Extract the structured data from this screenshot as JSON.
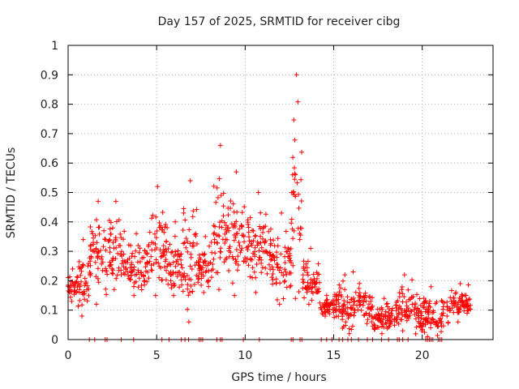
{
  "chart_data": {
    "type": "scatter",
    "title": "Day 157 of 2025, SRMTID for receiver cibg",
    "xlabel": "GPS time / hours",
    "ylabel": "SRMTID / TECUs",
    "xlim": [
      0,
      24
    ],
    "ylim": [
      0,
      1
    ],
    "x_ticks": [
      0,
      5,
      10,
      15,
      20
    ],
    "y_ticks": [
      0,
      0.1,
      0.2,
      0.3,
      0.4,
      0.5,
      0.6,
      0.7,
      0.8,
      0.9,
      1
    ],
    "x_tick_labels": [
      "0",
      "5",
      "10",
      "15",
      "20"
    ],
    "y_tick_labels": [
      "0",
      "0.1",
      "0.2",
      "0.3",
      "0.4",
      "0.5",
      "0.6",
      "0.7",
      "0.8",
      "0.9",
      "1"
    ],
    "grid": true,
    "marker": "+",
    "color": "#ff0000",
    "series": [
      {
        "name": "SRMTID",
        "segments": [
          {
            "x_start": 0.0,
            "x_end": 0.5,
            "y_min": 0.13,
            "y_max": 0.24
          },
          {
            "x_start": 0.5,
            "x_end": 1.2,
            "y_min": 0.08,
            "y_max": 0.34
          },
          {
            "x_start": 1.2,
            "x_end": 2.2,
            "y_min": 0.12,
            "y_max": 0.47
          },
          {
            "x_start": 2.2,
            "x_end": 3.2,
            "y_min": 0.17,
            "y_max": 0.47
          },
          {
            "x_start": 3.2,
            "x_end": 4.5,
            "y_min": 0.15,
            "y_max": 0.36
          },
          {
            "x_start": 4.5,
            "x_end": 5.6,
            "y_min": 0.15,
            "y_max": 0.52
          },
          {
            "x_start": 5.6,
            "x_end": 6.5,
            "y_min": 0.15,
            "y_max": 0.4
          },
          {
            "x_start": 6.5,
            "x_end": 7.3,
            "y_min": 0.06,
            "y_max": 0.54
          },
          {
            "x_start": 7.3,
            "x_end": 8.2,
            "y_min": 0.16,
            "y_max": 0.35
          },
          {
            "x_start": 8.2,
            "x_end": 9.0,
            "y_min": 0.17,
            "y_max": 0.66
          },
          {
            "x_start": 9.0,
            "x_end": 10.0,
            "y_min": 0.15,
            "y_max": 0.57
          },
          {
            "x_start": 10.0,
            "x_end": 11.5,
            "y_min": 0.16,
            "y_max": 0.5
          },
          {
            "x_start": 11.5,
            "x_end": 12.6,
            "y_min": 0.12,
            "y_max": 0.43
          },
          {
            "x_start": 12.6,
            "x_end": 13.2,
            "y_min": 0.14,
            "y_max": 0.9
          },
          {
            "x_start": 13.2,
            "x_end": 14.2,
            "y_min": 0.12,
            "y_max": 0.31
          },
          {
            "x_start": 14.2,
            "x_end": 15.0,
            "y_min": 0.08,
            "y_max": 0.15
          },
          {
            "x_start": 15.0,
            "x_end": 17.2,
            "y_min": 0.02,
            "y_max": 0.23
          },
          {
            "x_start": 17.2,
            "x_end": 18.5,
            "y_min": 0.02,
            "y_max": 0.14
          },
          {
            "x_start": 18.5,
            "x_end": 19.5,
            "y_min": 0.03,
            "y_max": 0.22
          },
          {
            "x_start": 19.5,
            "x_end": 21.5,
            "y_min": 0.01,
            "y_max": 0.18
          },
          {
            "x_start": 21.5,
            "x_end": 22.8,
            "y_min": 0.06,
            "y_max": 0.19
          }
        ],
        "zero_points_x": [
          1.2,
          1.5,
          2.1,
          2.2,
          3.0,
          3.7,
          5.3,
          5.7,
          6.4,
          6.6,
          6.8,
          7.4,
          7.5,
          7.6,
          8.4,
          8.6,
          8.7,
          9.9,
          10.8,
          12.6,
          12.7,
          13.1,
          13.2,
          14.3,
          14.6,
          14.9,
          15.3,
          15.5,
          15.8,
          16.0,
          16.4,
          16.9,
          17.2,
          17.7,
          18.1,
          18.6,
          18.7,
          18.9,
          19.2,
          20.2,
          20.3,
          20.4,
          20.5,
          20.6,
          20.9,
          21.0,
          21.1
        ]
      }
    ]
  }
}
